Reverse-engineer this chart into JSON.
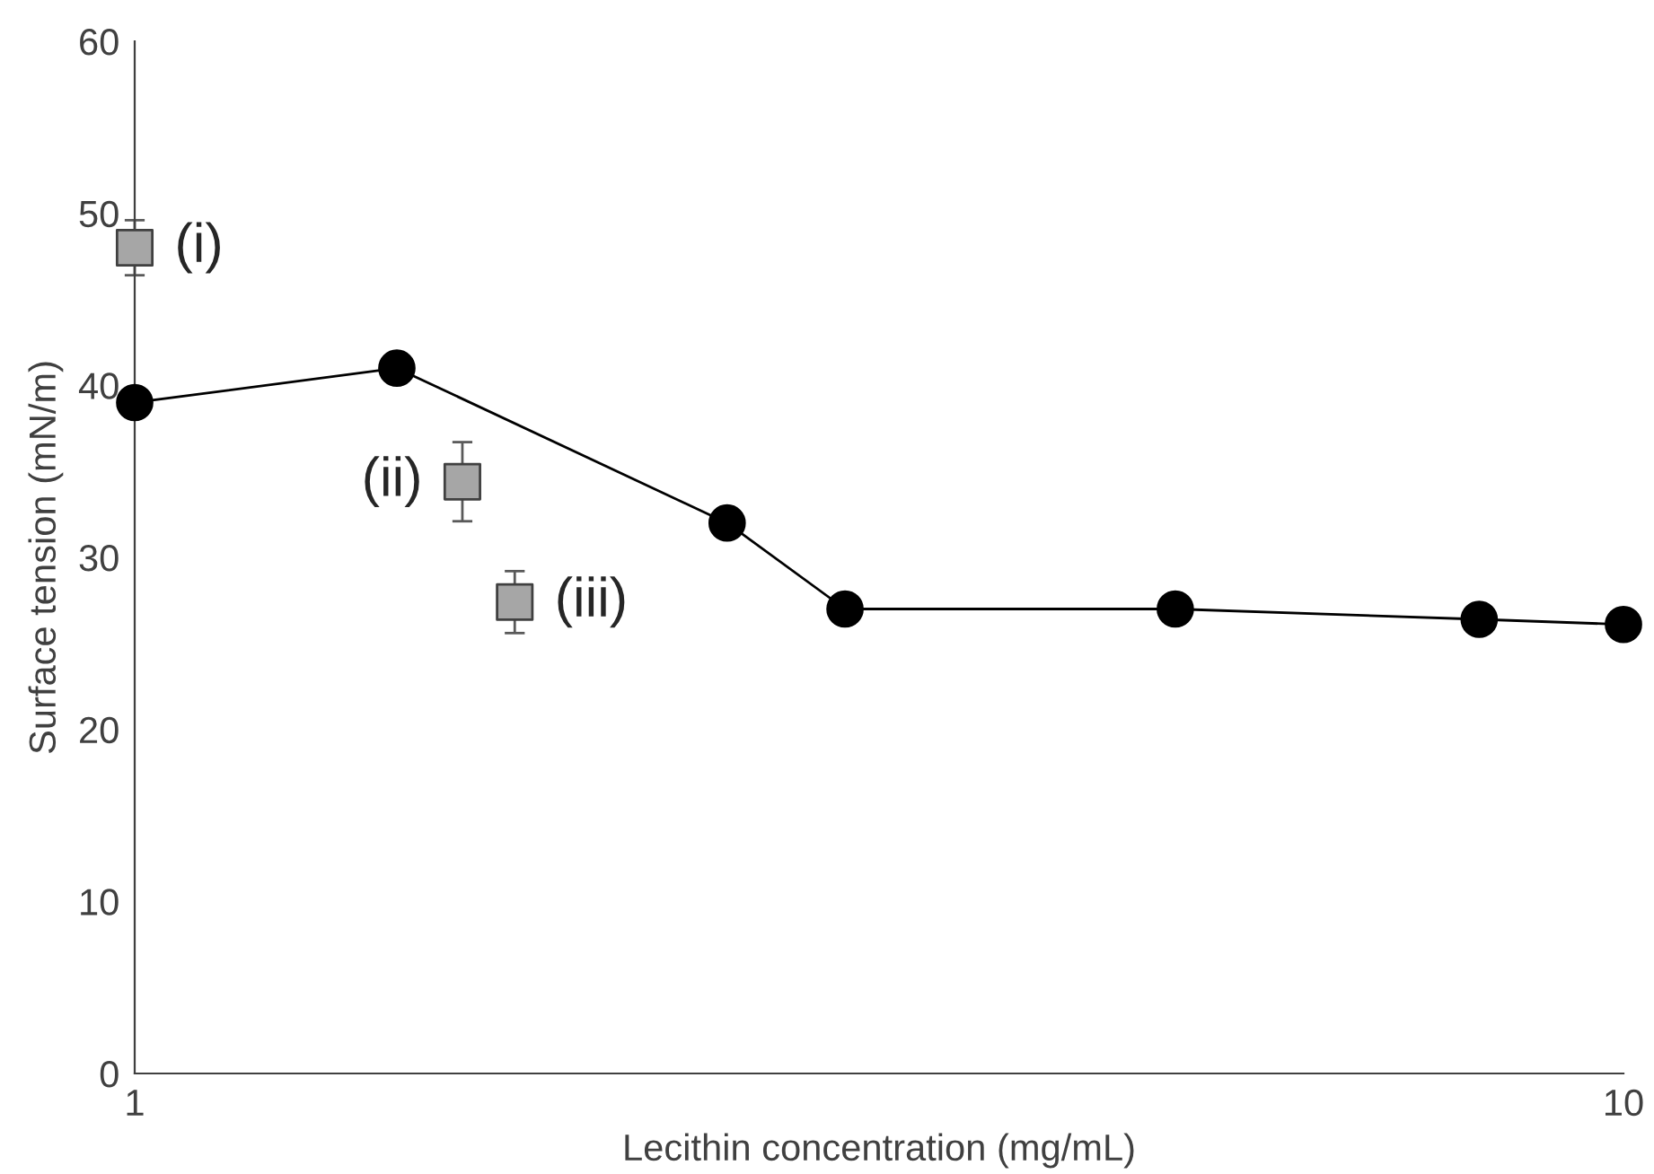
{
  "chart_data": {
    "type": "line",
    "xlabel": "Lecithin concentration (mg/mL)",
    "ylabel": "Surface tension (mN/m)",
    "log": "x",
    "xlim": [
      1,
      10
    ],
    "xticks": [
      1,
      10
    ],
    "ylim": [
      0,
      60
    ],
    "yticks": [
      0,
      10,
      20,
      30,
      40,
      50,
      60
    ],
    "grid": false,
    "legend": false,
    "marker": "circle",
    "line_style": "solid",
    "series": [
      {
        "color": "#000000",
        "x": [
          1,
          1.5,
          2.5,
          3,
          5,
          8,
          10
        ],
        "values": [
          39,
          41,
          32,
          27,
          27,
          26.4,
          26.1
        ]
      },
      {
        "type": "scatter",
        "marker": "square",
        "color": "#a6a6a6",
        "x": [
          1,
          1.66,
          1.8
        ],
        "values": [
          48,
          34.4,
          27.4
        ],
        "errors": [
          1.6,
          2.3,
          1.8
        ]
      }
    ],
    "annotations": [
      {
        "text": "(i)",
        "x": 1,
        "y": 48
      },
      {
        "text": "(ii)",
        "x": 1.66,
        "y": 34.4
      },
      {
        "text": "(iii)",
        "x": 1.8,
        "y": 27.4
      }
    ]
  }
}
